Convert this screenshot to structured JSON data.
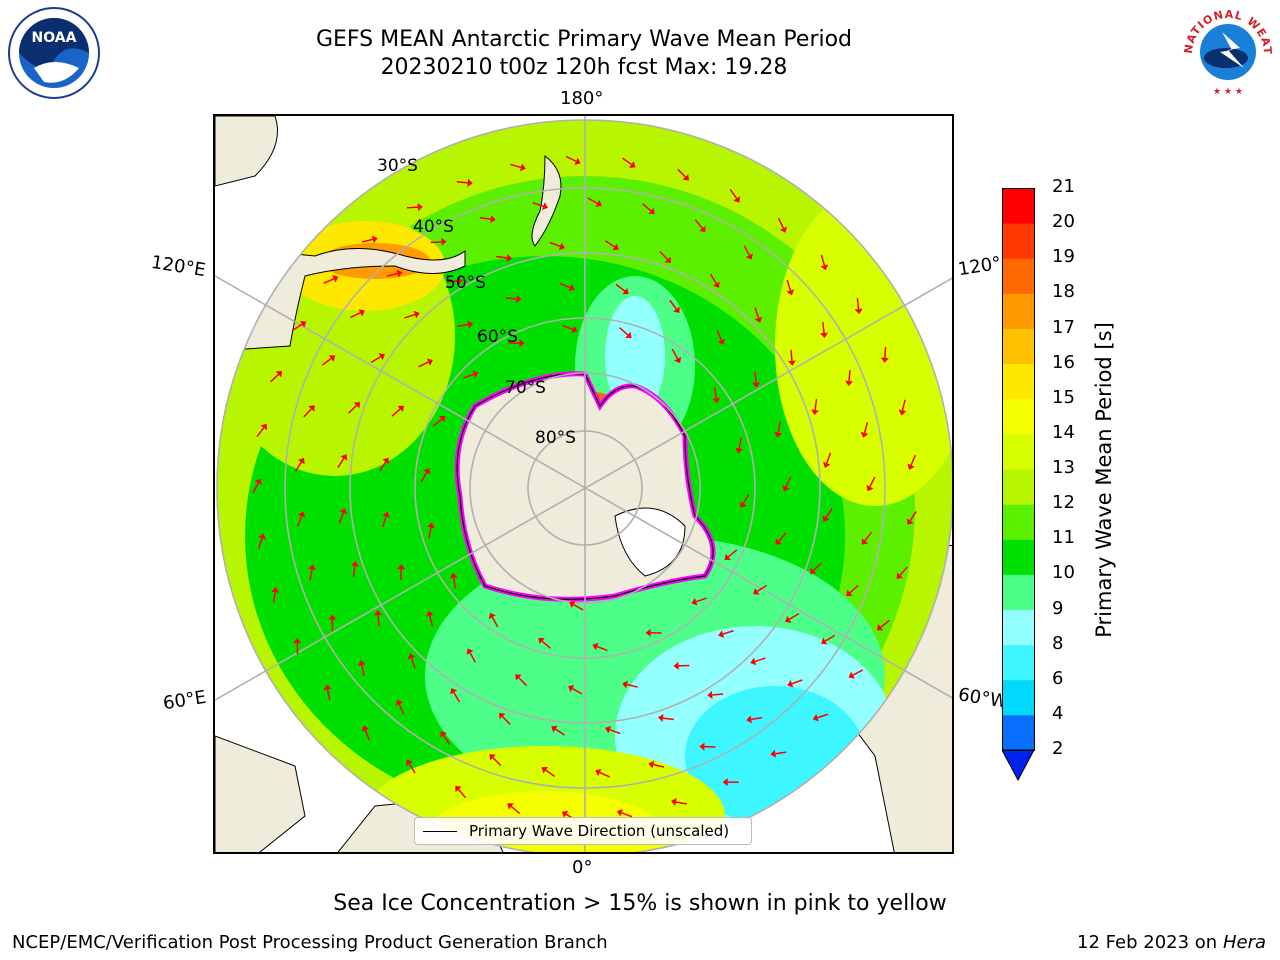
{
  "title_line1": "GEFS MEAN Antarctic Primary Wave Mean Period",
  "title_line2": "20230210 t00z 120h fcst   Max: 19.28",
  "subnote": "Sea Ice Concentration > 15% is shown in pink to yellow",
  "footer_left": "NCEP/EMC/Verification Post Processing Product Generation Branch",
  "footer_date": "12 Feb 2023 on",
  "footer_host": "Hera",
  "legend_label": "Primary Wave Direction (unscaled)",
  "colorbar": {
    "label": "Primary Wave Mean Period [s]",
    "ticks": [
      "2",
      "4",
      "6",
      "8",
      "9",
      "10",
      "11",
      "12",
      "13",
      "14",
      "15",
      "16",
      "17",
      "18",
      "19",
      "20",
      "21"
    ],
    "colors": [
      "#0a6eff",
      "#00d8ff",
      "#3df6ff",
      "#94ffff",
      "#4dff88",
      "#00e000",
      "#5cf000",
      "#b8f500",
      "#d8ff00",
      "#f5ff00",
      "#ffe800",
      "#ffc000",
      "#ff9a00",
      "#ff6a00",
      "#ff3800",
      "#ff0000"
    ],
    "under_color": "#0022ee"
  },
  "map": {
    "meridian_labels": {
      "top": "180°",
      "bottom": "0°",
      "left_upper": "120°E",
      "left_lower": "60°E",
      "right_upper": "120°",
      "right_lower": "60°W"
    },
    "latitude_labels": [
      "30°S",
      "40°S",
      "50°S",
      "60°S",
      "70°S",
      "80°S"
    ],
    "land_color": "#efecdc",
    "ice_colors": [
      "#ff00ff",
      "#ff88ff",
      "#ffff88"
    ]
  },
  "logos": {
    "left": "NOAA",
    "right_arc": "NATIONAL WEATHER SERVICE"
  }
}
